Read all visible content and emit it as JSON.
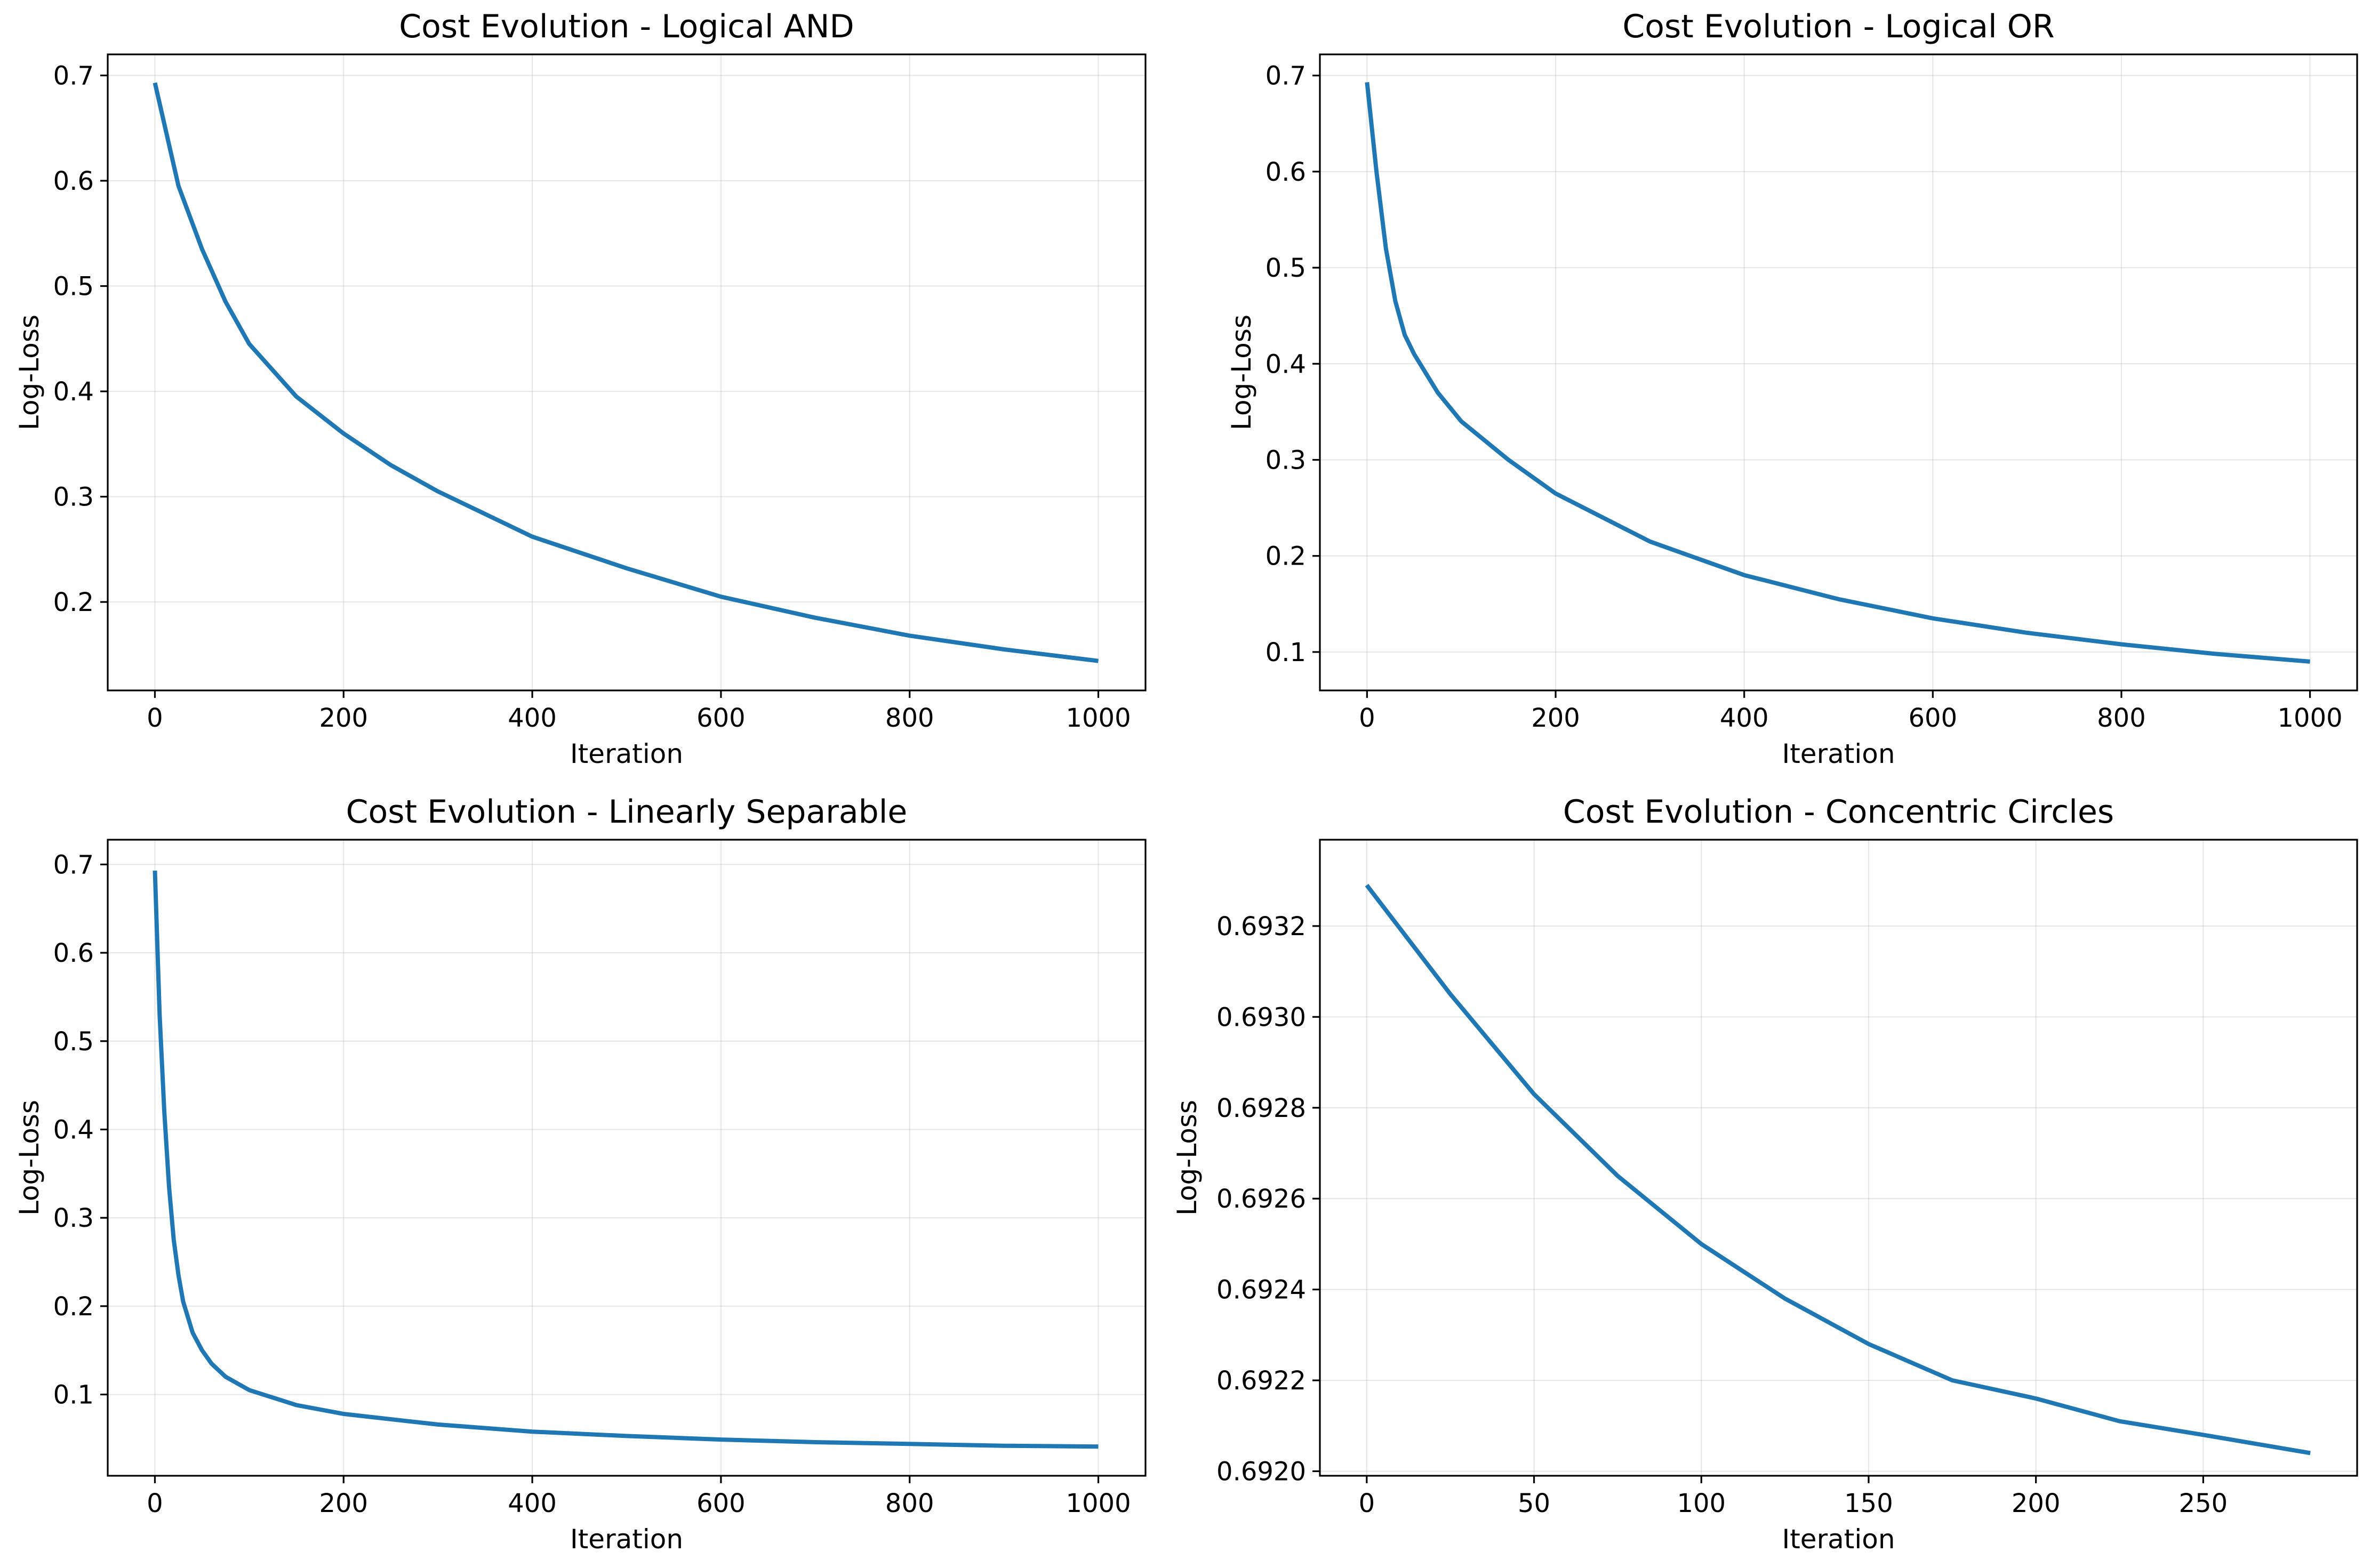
{
  "chart_data": [
    {
      "type": "line",
      "title": "Cost Evolution - Logical AND",
      "xlabel": "Iteration",
      "ylabel": "Log-Loss",
      "xlim": [
        -50,
        1050
      ],
      "ylim": [
        0.116,
        0.72
      ],
      "xticks": [
        0,
        200,
        400,
        600,
        800,
        1000
      ],
      "xtick_labels": [
        "0",
        "200",
        "400",
        "600",
        "800",
        "1000"
      ],
      "yticks": [
        0.2,
        0.3,
        0.4,
        0.5,
        0.6,
        0.7
      ],
      "ytick_labels": [
        "0.2",
        "0.3",
        "0.4",
        "0.5",
        "0.6",
        "0.7"
      ],
      "grid": true,
      "line_color": "#1f77b4",
      "series": [
        {
          "x": [
            0,
            25,
            50,
            75,
            100,
            150,
            200,
            250,
            300,
            400,
            500,
            600,
            700,
            800,
            900,
            1000
          ],
          "values": [
            0.693,
            0.595,
            0.535,
            0.485,
            0.445,
            0.395,
            0.36,
            0.33,
            0.305,
            0.262,
            0.232,
            0.205,
            0.185,
            0.168,
            0.155,
            0.144
          ]
        }
      ]
    },
    {
      "type": "line",
      "title": "Cost Evolution - Logical OR",
      "xlabel": "Iteration",
      "ylabel": "Log-Loss",
      "xlim": [
        -50,
        1050
      ],
      "ylim": [
        0.06,
        0.722
      ],
      "xticks": [
        0,
        200,
        400,
        600,
        800,
        1000
      ],
      "xtick_labels": [
        "0",
        "200",
        "400",
        "600",
        "800",
        "1000"
      ],
      "yticks": [
        0.1,
        0.2,
        0.3,
        0.4,
        0.5,
        0.6,
        0.7
      ],
      "ytick_labels": [
        "0.1",
        "0.2",
        "0.3",
        "0.4",
        "0.5",
        "0.6",
        "0.7"
      ],
      "grid": true,
      "line_color": "#1f77b4",
      "series": [
        {
          "x": [
            0,
            10,
            20,
            30,
            40,
            50,
            75,
            100,
            150,
            200,
            300,
            400,
            500,
            600,
            700,
            800,
            900,
            1000
          ],
          "values": [
            0.693,
            0.6,
            0.52,
            0.465,
            0.43,
            0.41,
            0.37,
            0.34,
            0.3,
            0.265,
            0.215,
            0.18,
            0.155,
            0.135,
            0.12,
            0.108,
            0.098,
            0.09
          ]
        }
      ]
    },
    {
      "type": "line",
      "title": "Cost Evolution - Linearly Separable",
      "xlabel": "Iteration",
      "ylabel": "Log-Loss",
      "xlim": [
        -50,
        1050
      ],
      "ylim": [
        0.008,
        0.728
      ],
      "xticks": [
        0,
        200,
        400,
        600,
        800,
        1000
      ],
      "xtick_labels": [
        "0",
        "200",
        "400",
        "600",
        "800",
        "1000"
      ],
      "yticks": [
        0.1,
        0.2,
        0.3,
        0.4,
        0.5,
        0.6,
        0.7
      ],
      "ytick_labels": [
        "0.1",
        "0.2",
        "0.3",
        "0.4",
        "0.5",
        "0.6",
        "0.7"
      ],
      "grid": true,
      "line_color": "#1f77b4",
      "series": [
        {
          "x": [
            0,
            5,
            10,
            15,
            20,
            25,
            30,
            40,
            50,
            60,
            75,
            100,
            150,
            200,
            300,
            400,
            500,
            600,
            700,
            800,
            900,
            1000
          ],
          "values": [
            0.693,
            0.53,
            0.42,
            0.335,
            0.275,
            0.235,
            0.205,
            0.17,
            0.15,
            0.135,
            0.12,
            0.105,
            0.088,
            0.078,
            0.066,
            0.058,
            0.053,
            0.049,
            0.046,
            0.044,
            0.042,
            0.041
          ]
        }
      ]
    },
    {
      "type": "line",
      "title": "Cost Evolution - Concentric Circles",
      "xlabel": "Iteration",
      "ylabel": "Log-Loss",
      "xlim": [
        -14,
        296
      ],
      "ylim": [
        0.69199,
        0.69339
      ],
      "xticks": [
        0,
        50,
        100,
        150,
        200,
        250
      ],
      "xtick_labels": [
        "0",
        "50",
        "100",
        "150",
        "200",
        "250"
      ],
      "yticks": [
        0.692,
        0.6922,
        0.6924,
        0.6926,
        0.6928,
        0.693,
        0.6932
      ],
      "ytick_labels": [
        "0.6920",
        "0.6922",
        "0.6924",
        "0.6926",
        "0.6928",
        "0.6930",
        "0.6932"
      ],
      "grid": true,
      "line_color": "#1f77b4",
      "series": [
        {
          "x": [
            0,
            25,
            50,
            75,
            100,
            125,
            150,
            175,
            200,
            225,
            250,
            282
          ],
          "values": [
            0.69329,
            0.69305,
            0.69283,
            0.69265,
            0.6925,
            0.69238,
            0.69228,
            0.6922,
            0.69216,
            0.69211,
            0.69208,
            0.69204
          ]
        }
      ]
    }
  ]
}
